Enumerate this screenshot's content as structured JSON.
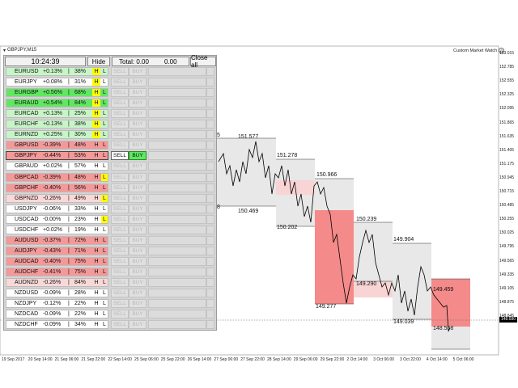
{
  "window": {
    "title": "GBPJPY,M15",
    "custom_market_watch": "Custom Market Watch"
  },
  "panel": {
    "clock": "10:24:39",
    "hide_label": "Hide",
    "total_label": "Total: 0.00",
    "total_value": "0.00",
    "close_all_label": "Close all",
    "sell_label": "SELL",
    "buy_label": "BUY",
    "h_label": "H",
    "l_label": "L",
    "separator": "|",
    "pairs": [
      {
        "symbol": "EURUSD",
        "change": "+0.13%",
        "percent": "38%",
        "tone": "lightgreen",
        "h_hi": true,
        "l_hi": false
      },
      {
        "symbol": "EURJPY",
        "change": "+0.08%",
        "percent": "31%",
        "tone": "white",
        "h_hi": true,
        "l_hi": false
      },
      {
        "symbol": "EURGBP",
        "change": "+0.56%",
        "percent": "68%",
        "tone": "green",
        "h_hi": true,
        "l_hi": false
      },
      {
        "symbol": "EURAUD",
        "change": "+0.54%",
        "percent": "84%",
        "tone": "green",
        "h_hi": true,
        "l_hi": false
      },
      {
        "symbol": "EURCAD",
        "change": "+0.13%",
        "percent": "25%",
        "tone": "lightgreen",
        "h_hi": true,
        "l_hi": false
      },
      {
        "symbol": "EURCHF",
        "change": "+0.13%",
        "percent": "38%",
        "tone": "lightgreen",
        "h_hi": true,
        "l_hi": false
      },
      {
        "symbol": "EURNZD",
        "change": "+0.25%",
        "percent": "30%",
        "tone": "lightgreen",
        "h_hi": true,
        "l_hi": false
      },
      {
        "symbol": "GBPUSD",
        "change": "-0.39%",
        "percent": "48%",
        "tone": "red",
        "h_hi": false,
        "l_hi": false
      },
      {
        "symbol": "GBPJPY",
        "change": "-0.44%",
        "percent": "53%",
        "tone": "red",
        "h_hi": false,
        "l_hi": false,
        "selected": true
      },
      {
        "symbol": "GBPAUD",
        "change": "+0.02%",
        "percent": "57%",
        "tone": "white",
        "h_hi": false,
        "l_hi": false
      },
      {
        "symbol": "GBPCAD",
        "change": "-0.39%",
        "percent": "48%",
        "tone": "red",
        "h_hi": false,
        "l_hi": true
      },
      {
        "symbol": "GBPCHF",
        "change": "-0.40%",
        "percent": "56%",
        "tone": "red",
        "h_hi": false,
        "l_hi": false
      },
      {
        "symbol": "GBPNZD",
        "change": "-0.26%",
        "percent": "49%",
        "tone": "lightred",
        "h_hi": false,
        "l_hi": true
      },
      {
        "symbol": "USDJPY",
        "change": "-0.06%",
        "percent": "33%",
        "tone": "white",
        "h_hi": false,
        "l_hi": false
      },
      {
        "symbol": "USDCAD",
        "change": "-0.00%",
        "percent": "23%",
        "tone": "white",
        "h_hi": false,
        "l_hi": true
      },
      {
        "symbol": "USDCHF",
        "change": "+0.02%",
        "percent": "19%",
        "tone": "white",
        "h_hi": false,
        "l_hi": false
      },
      {
        "symbol": "AUDUSD",
        "change": "-0.37%",
        "percent": "72%",
        "tone": "red",
        "h_hi": false,
        "l_hi": false
      },
      {
        "symbol": "AUDJPY",
        "change": "-0.43%",
        "percent": "71%",
        "tone": "red",
        "h_hi": false,
        "l_hi": false
      },
      {
        "symbol": "AUDCAD",
        "change": "-0.40%",
        "percent": "75%",
        "tone": "red",
        "h_hi": false,
        "l_hi": false
      },
      {
        "symbol": "AUDCHF",
        "change": "-0.41%",
        "percent": "75%",
        "tone": "red",
        "h_hi": false,
        "l_hi": false
      },
      {
        "symbol": "AUDNZD",
        "change": "-0.26%",
        "percent": "84%",
        "tone": "lightred",
        "h_hi": false,
        "l_hi": false
      },
      {
        "symbol": "NZDUSD",
        "change": "-0.09%",
        "percent": "28%",
        "tone": "white",
        "h_hi": false,
        "l_hi": false
      },
      {
        "symbol": "NZDJPY",
        "change": "-0.12%",
        "percent": "22%",
        "tone": "white",
        "h_hi": false,
        "l_hi": false
      },
      {
        "symbol": "NZDCAD",
        "change": "-0.09%",
        "percent": "22%",
        "tone": "white",
        "h_hi": false,
        "l_hi": false
      },
      {
        "symbol": "NZDCHF",
        "change": "-0.09%",
        "percent": "34%",
        "tone": "white",
        "h_hi": false,
        "l_hi": false
      }
    ]
  },
  "chart": {
    "price_axis": [
      "153.015",
      "152.785",
      "152.555",
      "152.325",
      "152.095",
      "151.865",
      "151.635",
      "151.405",
      "151.175",
      "150.945",
      "150.715",
      "150.485",
      "150.255",
      "150.025",
      "149.795",
      "149.565",
      "149.335",
      "149.105",
      "148.875",
      "148.645"
    ],
    "current_price": "148.680",
    "time_axis": [
      "19 Sep 2017",
      "20 Sep 14:00",
      "21 Sep 06:00",
      "21 Sep 22:00",
      "22 Sep 14:00",
      "25 Sep 06:00",
      "25 Sep 22:00",
      "26 Sep 14:00",
      "27 Sep 06:00",
      "27 Sep 22:00",
      "28 Sep 14:00",
      "29 Sep 06:00",
      "29 Sep 22:00",
      "2 Oct 14:00",
      "3 Oct 06:00",
      "3 Oct 22:00",
      "4 Oct 14:00",
      "5 Oct 06:00"
    ],
    "levels": [
      {
        "label": "151.577",
        "pos": "top"
      },
      {
        "label": "150.469",
        "pos": "bottom"
      },
      {
        "label": "151.278",
        "pos": "top"
      },
      {
        "label": "150.202",
        "pos": "bottom"
      },
      {
        "label": "150.966",
        "pos": "top"
      },
      {
        "label": "149.277",
        "pos": "bottom"
      },
      {
        "label": "150.239",
        "pos": "top"
      },
      {
        "label": "149.290",
        "pos": "bottom"
      },
      {
        "label": "149.904",
        "pos": "top"
      },
      {
        "label": "149.039",
        "pos": "bottom"
      },
      {
        "label": "149.459",
        "pos": "top"
      },
      {
        "label": "148.558",
        "pos": "bottom"
      }
    ],
    "partial_labels": [
      "5",
      "8"
    ],
    "colors": {
      "grey_zone": "#e8e8e8",
      "red_zone": "#f48a8a",
      "pink_zone": "#f9d4d4",
      "up_tone": "#60e860",
      "up_light": "#c8f5c8",
      "down_tone": "#f49898",
      "down_light": "#fbd8d8",
      "highlight": "#ffff00"
    }
  }
}
